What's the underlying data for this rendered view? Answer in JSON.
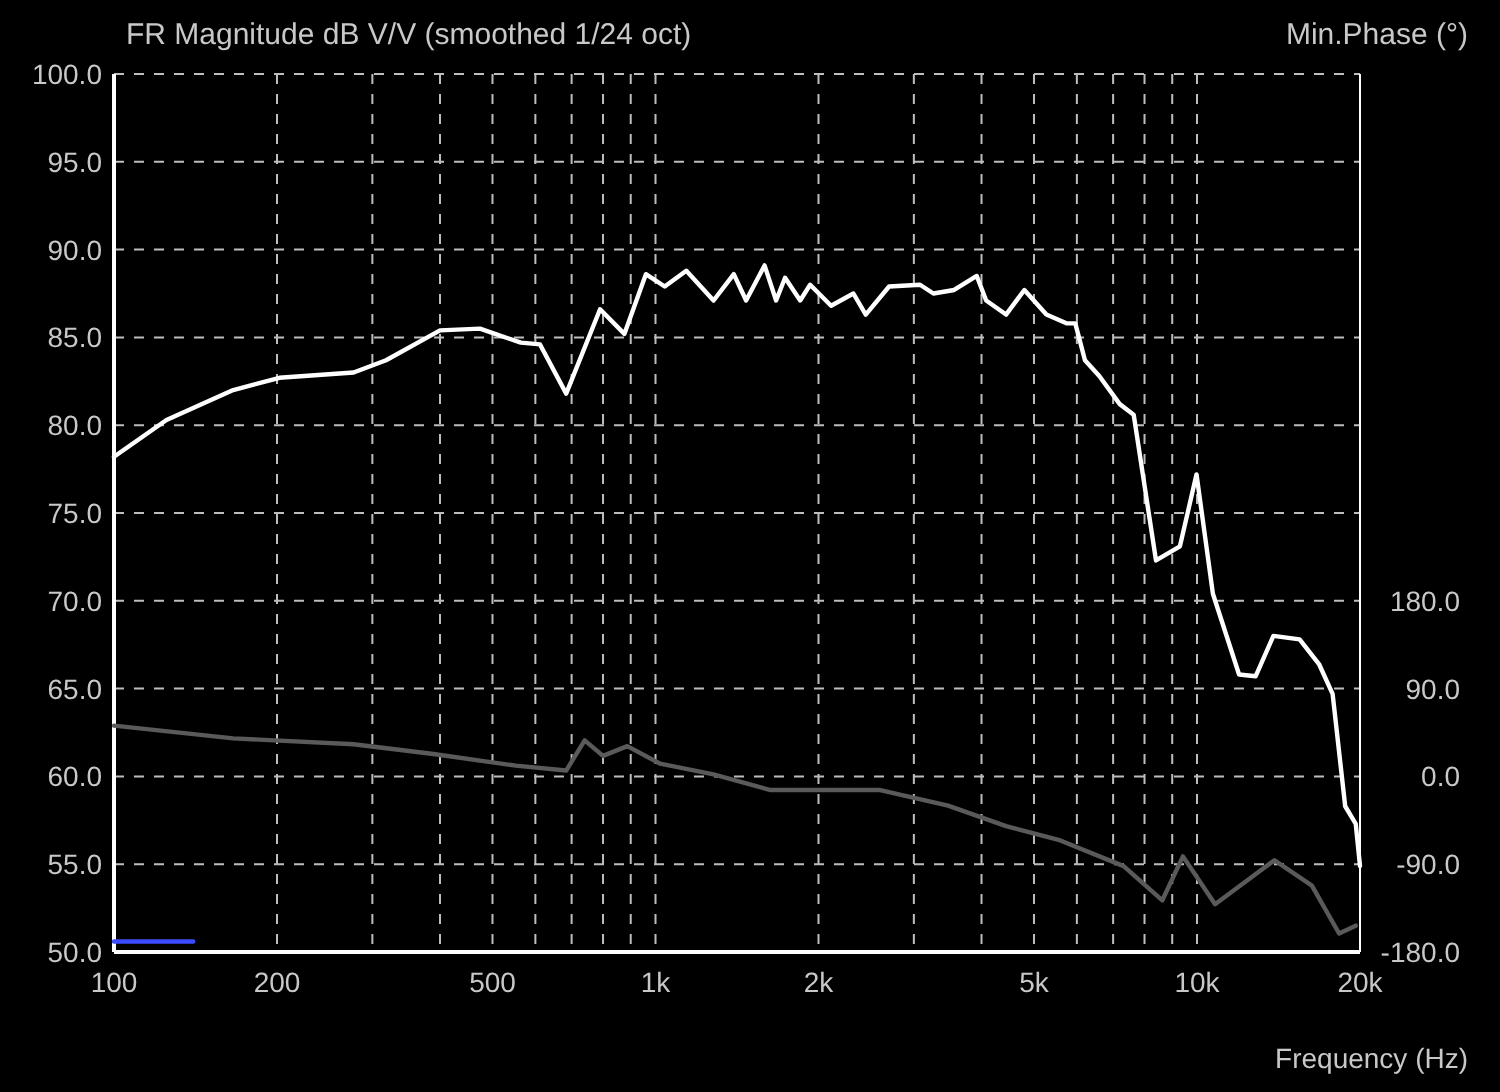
{
  "chart_data": {
    "type": "line",
    "ylabel": "FR Magnitude dB V/V (smoothed 1/24 oct)",
    "y2label": "Min.Phase (°)",
    "xlabel": "Frequency (Hz)",
    "log": "x",
    "grid": true,
    "line_style": "solid",
    "xlim": [
      100,
      20000
    ],
    "xticks": [
      100,
      200,
      {
        "value": 300,
        "label": null
      },
      {
        "value": 400,
        "label": null
      },
      500,
      {
        "value": 600,
        "label": null
      },
      {
        "value": 700,
        "label": null
      },
      {
        "value": 800,
        "label": null
      },
      {
        "value": 900,
        "label": null
      },
      {
        "value": 1000,
        "label": "1k"
      },
      {
        "value": 2000,
        "label": "2k"
      },
      {
        "value": 3000,
        "label": null
      },
      {
        "value": 4000,
        "label": null
      },
      {
        "value": 5000,
        "label": "5k"
      },
      {
        "value": 6000,
        "label": null
      },
      {
        "value": 7000,
        "label": null
      },
      {
        "value": 8000,
        "label": null
      },
      {
        "value": 9000,
        "label": null
      },
      {
        "value": 10000,
        "label": "10k"
      },
      {
        "value": 20000,
        "label": "20k"
      }
    ],
    "ylim": [
      50,
      100
    ],
    "yticks": [
      {
        "value": 50,
        "label": "50.0"
      },
      {
        "value": 55,
        "label": "55.0"
      },
      {
        "value": 60,
        "label": "60.0"
      },
      {
        "value": 65,
        "label": "65.0"
      },
      {
        "value": 70,
        "label": "70.0"
      },
      {
        "value": 75,
        "label": "75.0"
      },
      {
        "value": 80,
        "label": "80.0"
      },
      {
        "value": 85,
        "label": "85.0"
      },
      {
        "value": 90,
        "label": "90.0"
      },
      {
        "value": 95,
        "label": "95.0"
      },
      {
        "value": 100,
        "label": "100.0"
      }
    ],
    "y2lim": [
      -180,
      720
    ],
    "y2ticks": [
      {
        "value": -180,
        "label": "-180.0"
      },
      {
        "value": -90,
        "label": "-90.0"
      },
      {
        "value": 0,
        "label": "0.0"
      },
      {
        "value": 90,
        "label": "90.0"
      },
      {
        "value": 180,
        "label": "180.0"
      }
    ],
    "series": [
      {
        "color": "#ffffff",
        "x": [
          100,
          125,
          166,
          202,
          277,
          318,
          400,
          474,
          564,
          612,
          684,
          790,
          876,
          960,
          1040,
          1140,
          1280,
          1395,
          1470,
          1590,
          1670,
          1735,
          1850,
          1930,
          2110,
          2320,
          2445,
          2700,
          3080,
          3260,
          3560,
          3920,
          4080,
          4440,
          4800,
          5270,
          5740,
          5960,
          6210,
          6600,
          7200,
          7640,
          8400,
          9300,
          9980,
          10700,
          11960,
          12830,
          13840,
          15470,
          16800,
          17800,
          18780,
          19640,
          20000
        ],
        "values": [
          78.2,
          80.3,
          82.0,
          82.7,
          83.0,
          83.7,
          85.4,
          85.5,
          84.7,
          84.6,
          81.8,
          86.6,
          85.2,
          88.6,
          87.9,
          88.8,
          87.1,
          88.6,
          87.1,
          89.1,
          87.1,
          88.4,
          87.1,
          88.0,
          86.8,
          87.5,
          86.3,
          87.9,
          88.0,
          87.5,
          87.7,
          88.5,
          87.1,
          86.3,
          87.7,
          86.3,
          85.8,
          85.8,
          83.7,
          82.8,
          81.2,
          80.6,
          72.3,
          73.1,
          77.2,
          70.4,
          65.8,
          65.7,
          68.0,
          67.8,
          66.4,
          64.7,
          58.3,
          57.3,
          54.9
        ]
      },
      {
        "color": "#5a5a5a",
        "axis": "y2",
        "x": [
          100,
          166,
          277,
          389,
          552,
          684,
          740,
          800,
          887,
          1020,
          1280,
          1630,
          2600,
          3470,
          4440,
          5550,
          7320,
          8630,
          9420,
          10800,
          13900,
          16300,
          18300,
          19640
        ],
        "values": [
          52,
          39,
          33,
          23,
          11,
          6,
          37,
          21,
          31,
          13,
          2,
          -14,
          -14,
          -30,
          -51,
          -65,
          -92,
          -127,
          -82,
          -131,
          -86,
          -112,
          -161,
          -153
        ]
      },
      {
        "color": "#3b4cff",
        "x": [
          100,
          140
        ],
        "values": [
          50.6,
          50.6
        ]
      }
    ]
  }
}
